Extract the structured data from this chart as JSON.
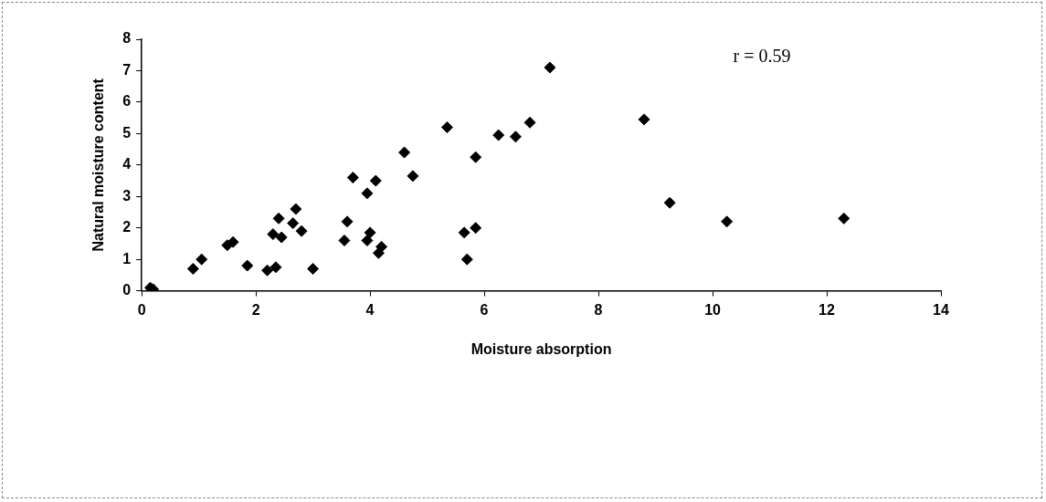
{
  "chart_data": {
    "type": "scatter",
    "xlabel": "Moisture absorption",
    "ylabel": "Natural moisture content",
    "annotations": [
      "r = 0.59"
    ],
    "x": [
      0.15,
      0.2,
      0.9,
      1.05,
      1.5,
      1.6,
      1.85,
      2.2,
      2.35,
      2.3,
      2.45,
      2.4,
      2.7,
      2.65,
      2.8,
      3.0,
      3.55,
      3.6,
      3.7,
      3.95,
      4.0,
      3.95,
      4.1,
      4.2,
      4.15,
      4.6,
      4.75,
      5.35,
      5.65,
      5.7,
      5.85,
      5.85,
      6.25,
      6.55,
      6.8,
      7.15,
      8.8,
      9.25,
      10.25,
      12.3
    ],
    "series": [
      {
        "color": "#000000",
        "values": [
          0.1,
          0.05,
          0.7,
          1.0,
          1.45,
          1.55,
          0.8,
          0.65,
          0.75,
          1.8,
          1.7,
          2.3,
          2.6,
          2.15,
          1.9,
          0.7,
          1.6,
          2.2,
          3.6,
          3.1,
          1.85,
          1.6,
          3.5,
          1.4,
          1.2,
          4.4,
          3.65,
          5.2,
          1.85,
          1.0,
          4.25,
          2.0,
          4.95,
          4.9,
          5.35,
          7.1,
          5.45,
          2.8,
          2.2,
          2.3
        ]
      }
    ],
    "xlim": [
      0,
      14
    ],
    "xticks": [
      0,
      2,
      4,
      6,
      8,
      10,
      12,
      14
    ],
    "ylim": [
      0,
      8
    ],
    "yticks": [
      0,
      1,
      2,
      3,
      4,
      5,
      6,
      7,
      8
    ],
    "grid": false,
    "legend": false,
    "marker": "diamond"
  }
}
